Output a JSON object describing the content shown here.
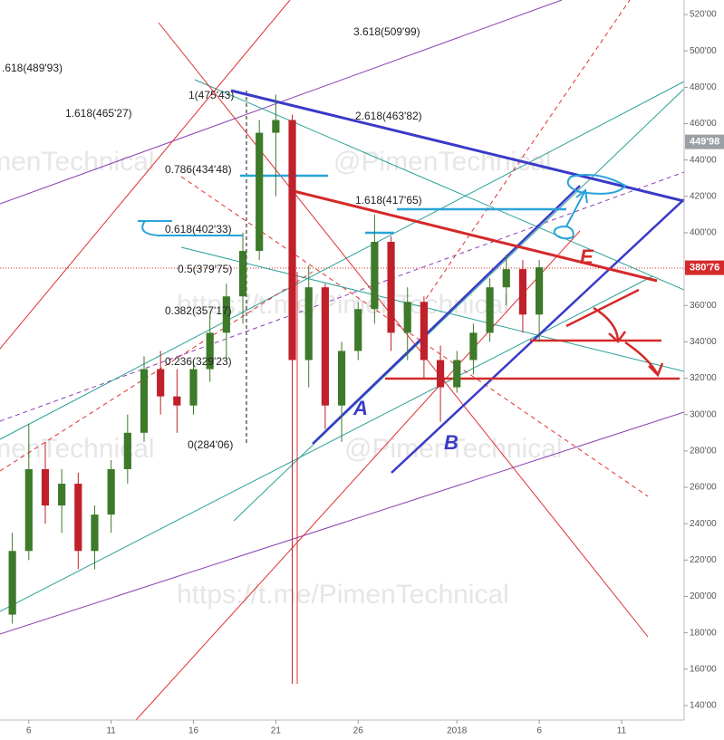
{
  "chart_data": {
    "type": "candlestick",
    "xlim": [
      4.25,
      45.8
    ],
    "xticks": [
      6,
      11,
      16,
      21,
      26,
      {
        "value": 32,
        "label": "2018"
      },
      {
        "value": 37,
        "label": "6"
      },
      {
        "value": 42,
        "label": "11"
      }
    ],
    "ylim": [
      132,
      528
    ],
    "yticks": [
      {
        "value": 140,
        "label": "140'00"
      },
      {
        "value": 160,
        "label": "160'00"
      },
      {
        "value": 180,
        "label": "180'00"
      },
      {
        "value": 200,
        "label": "200'00"
      },
      {
        "value": 220,
        "label": "220'00"
      },
      {
        "value": 240,
        "label": "240'00"
      },
      {
        "value": 260,
        "label": "260'00"
      },
      {
        "value": 280,
        "label": "280'00"
      },
      {
        "value": 300,
        "label": "300'00"
      },
      {
        "value": 320,
        "label": "320'00"
      },
      {
        "value": 340,
        "label": "340'00"
      },
      {
        "value": 360,
        "label": "360'00"
      },
      {
        "value": 380,
        "label": "380'00"
      },
      {
        "value": 400,
        "label": "400'00"
      },
      {
        "value": 420,
        "label": "420'00"
      },
      {
        "value": 440,
        "label": "440'00"
      },
      {
        "value": 460,
        "label": "460'00"
      },
      {
        "value": 480,
        "label": "480'00"
      },
      {
        "value": 500,
        "label": "500'00"
      },
      {
        "value": 520,
        "label": "520'00"
      }
    ],
    "up_color": "#3d7a2a",
    "down_color": "#c0202a",
    "candles": {
      "x": [
        5,
        6,
        7,
        8,
        9,
        10,
        11,
        12,
        13,
        14,
        15,
        16,
        17,
        18,
        19,
        20,
        21,
        22,
        23,
        24,
        25,
        26,
        27,
        28,
        29,
        30,
        31,
        32,
        33,
        34,
        35,
        36,
        37
      ],
      "open": [
        190,
        225,
        270,
        250,
        262,
        225,
        245,
        270,
        290,
        325,
        310,
        305,
        325,
        345,
        365,
        390,
        455,
        462,
        330,
        370,
        305,
        335,
        358,
        395,
        345,
        362,
        330,
        315,
        330,
        345,
        370,
        380,
        355
      ],
      "high": [
        235,
        295,
        285,
        270,
        268,
        250,
        275,
        300,
        332,
        335,
        325,
        330,
        355,
        372,
        400,
        462,
        476,
        465,
        382,
        372,
        340,
        362,
        410,
        398,
        370,
        365,
        338,
        335,
        350,
        375,
        388,
        385,
        385
      ],
      "low": [
        185,
        220,
        240,
        235,
        215,
        215,
        235,
        262,
        285,
        300,
        290,
        300,
        318,
        330,
        350,
        385,
        420,
        152,
        315,
        292,
        285,
        330,
        350,
        335,
        330,
        320,
        296,
        312,
        322,
        340,
        360,
        345,
        340
      ],
      "close": [
        225,
        270,
        250,
        262,
        225,
        245,
        270,
        290,
        325,
        310,
        305,
        325,
        345,
        365,
        390,
        455,
        462,
        330,
        370,
        305,
        335,
        358,
        395,
        345,
        362,
        330,
        315,
        330,
        345,
        370,
        380,
        355,
        381
      ]
    },
    "price_tags": [
      {
        "value": 449.98,
        "label": "449'98",
        "color": "#9aa0a6"
      },
      {
        "value": 380.76,
        "label": "380'76",
        "color": "#d42a2a"
      }
    ],
    "fib_labels": [
      "1(475'43)",
      "0.786(434'48)",
      "0.618(402'33)",
      "0.5(379'75)",
      "0.382(357'17)",
      "0.236(329'23)",
      "0(284'06)",
      "1.618(465'27)",
      ".618(489'93)",
      "3.618(509'99)",
      "2.618(463'82)",
      "1.618(417'65)"
    ],
    "annotations": [
      "A",
      "B",
      "E"
    ],
    "watermarks": [
      "@PimenTechnical",
      "https://t.me/PimenTechnical"
    ]
  }
}
